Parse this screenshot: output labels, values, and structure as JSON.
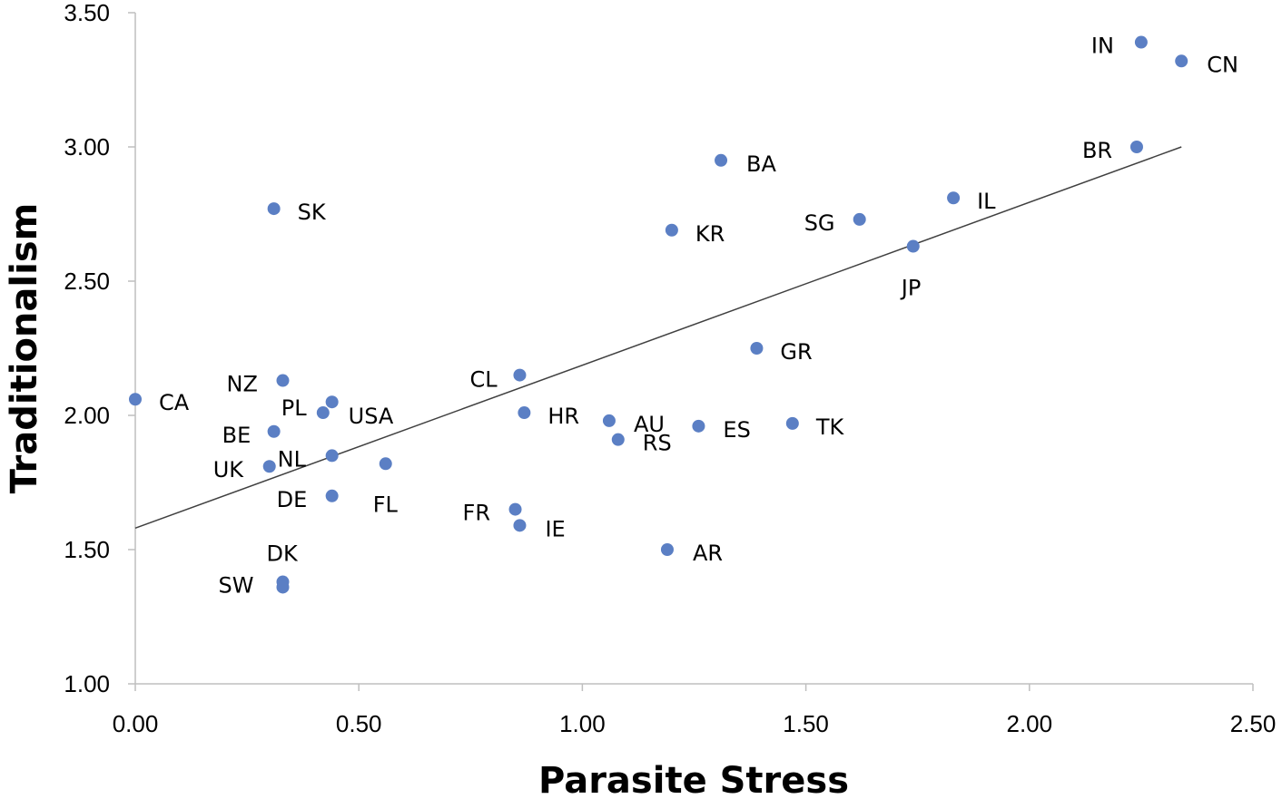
{
  "chart_data": {
    "type": "scatter",
    "xlabel": "Parasite Stress",
    "ylabel": "Traditionalism",
    "xlim": [
      0,
      2.5
    ],
    "ylim": [
      1.0,
      3.5
    ],
    "xticks": [
      "0.00",
      "0.50",
      "1.00",
      "1.50",
      "2.00",
      "2.50"
    ],
    "yticks": [
      "1.00",
      "1.50",
      "2.00",
      "2.50",
      "3.00",
      "3.50"
    ],
    "grid": false,
    "trendline": {
      "x": [
        0,
        2.34
      ],
      "y": [
        1.58,
        3.0
      ]
    },
    "marker_color": "#5b7fc4",
    "points": [
      {
        "label": "IN",
        "x": 2.25,
        "y": 3.39
      },
      {
        "label": "CN",
        "x": 2.34,
        "y": 3.32
      },
      {
        "label": "BR",
        "x": 2.24,
        "y": 3.0
      },
      {
        "label": "BA",
        "x": 1.31,
        "y": 2.95
      },
      {
        "label": "IL",
        "x": 1.83,
        "y": 2.81
      },
      {
        "label": "SK",
        "x": 0.31,
        "y": 2.77
      },
      {
        "label": "SG",
        "x": 1.62,
        "y": 2.73
      },
      {
        "label": "KR",
        "x": 1.2,
        "y": 2.69
      },
      {
        "label": "JP",
        "x": 1.74,
        "y": 2.63
      },
      {
        "label": "GR",
        "x": 1.39,
        "y": 2.25
      },
      {
        "label": "CL",
        "x": 0.86,
        "y": 2.15
      },
      {
        "label": "NZ",
        "x": 0.33,
        "y": 2.13
      },
      {
        "label": "CA",
        "x": 0.0,
        "y": 2.06
      },
      {
        "label": "USA",
        "x": 0.44,
        "y": 2.05
      },
      {
        "label": "PL",
        "x": 0.42,
        "y": 2.01
      },
      {
        "label": "HR",
        "x": 0.87,
        "y": 2.01
      },
      {
        "label": "AU",
        "x": 1.06,
        "y": 1.98
      },
      {
        "label": "TK",
        "x": 1.47,
        "y": 1.97
      },
      {
        "label": "ES",
        "x": 1.26,
        "y": 1.96
      },
      {
        "label": "BE",
        "x": 0.31,
        "y": 1.94
      },
      {
        "label": "RS",
        "x": 1.08,
        "y": 1.91
      },
      {
        "label": "NL",
        "x": 0.44,
        "y": 1.85
      },
      {
        "label": "FL",
        "x": 0.56,
        "y": 1.82
      },
      {
        "label": "UK",
        "x": 0.3,
        "y": 1.81
      },
      {
        "label": "DE",
        "x": 0.44,
        "y": 1.7
      },
      {
        "label": "FR",
        "x": 0.85,
        "y": 1.65
      },
      {
        "label": "IE",
        "x": 0.86,
        "y": 1.59
      },
      {
        "label": "AR",
        "x": 1.19,
        "y": 1.5
      },
      {
        "label": "DK",
        "x": 0.33,
        "y": 1.38
      },
      {
        "label": "SW",
        "x": 0.33,
        "y": 1.36
      }
    ]
  }
}
